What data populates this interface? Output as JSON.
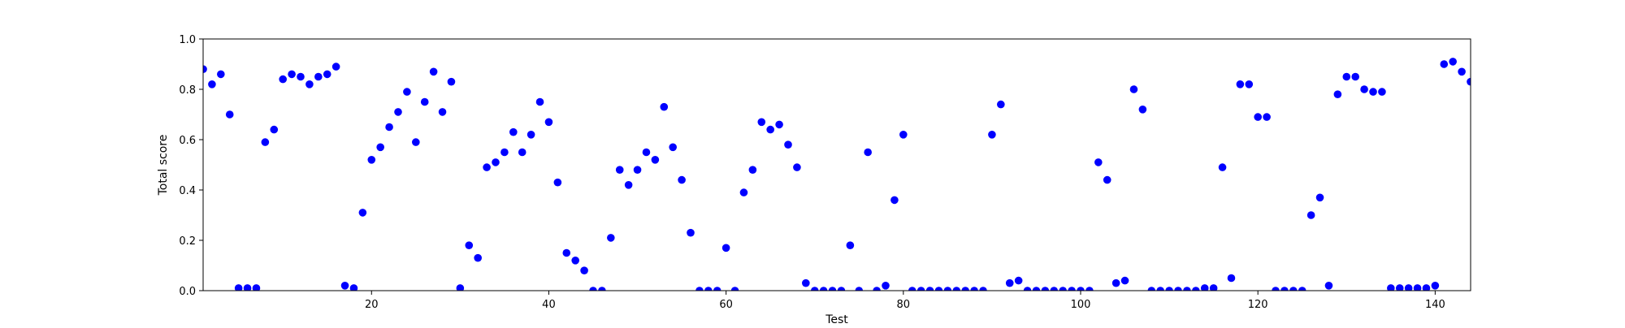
{
  "chart_data": {
    "type": "scatter",
    "title": "",
    "xlabel": "Test",
    "ylabel": "Total score",
    "xlim": [
      1,
      144
    ],
    "ylim": [
      0.0,
      1.0
    ],
    "xticks": [
      20,
      40,
      60,
      80,
      100,
      120,
      140
    ],
    "xtick_labels": [
      "20",
      "40",
      "60",
      "80",
      "100",
      "120",
      "140"
    ],
    "yticks": [
      0.0,
      0.2,
      0.4,
      0.6,
      0.8,
      1.0
    ],
    "ytick_labels": [
      "0.0",
      "0.2",
      "0.4",
      "0.6",
      "0.8",
      "1.0"
    ],
    "grid": false,
    "point_color": "#0000ff",
    "series": [
      {
        "x": [
          1,
          2,
          3,
          4,
          5,
          6,
          7,
          8,
          9,
          10,
          11,
          12,
          13,
          14,
          15,
          16,
          17,
          18,
          19,
          20,
          21,
          22,
          23,
          24,
          25,
          26,
          27,
          28,
          29,
          30,
          31,
          32,
          33,
          34,
          35,
          36,
          37,
          38,
          39,
          40,
          41,
          42,
          43,
          44,
          45,
          46,
          47,
          48,
          49,
          50,
          51,
          52,
          53,
          54,
          55,
          56,
          57,
          58,
          59,
          60,
          61,
          62,
          63,
          64,
          65,
          66,
          67,
          68,
          69,
          70,
          71,
          72,
          73,
          74,
          75,
          76,
          77,
          78,
          79,
          80,
          81,
          82,
          83,
          84,
          85,
          86,
          87,
          88,
          89,
          90,
          91,
          92,
          93,
          94,
          95,
          96,
          97,
          98,
          99,
          100,
          101,
          102,
          103,
          104,
          105,
          106,
          107,
          108,
          109,
          110,
          111,
          112,
          113,
          114,
          115,
          116,
          117,
          118,
          119,
          120,
          121,
          122,
          123,
          124,
          125,
          126,
          127,
          128,
          129,
          130,
          131,
          132,
          133,
          134,
          135,
          136,
          137,
          138,
          139,
          140,
          141,
          142,
          143,
          144
        ],
        "y": [
          0.88,
          0.82,
          0.86,
          0.7,
          0.01,
          0.01,
          0.01,
          0.59,
          0.64,
          0.84,
          0.86,
          0.85,
          0.82,
          0.85,
          0.86,
          0.89,
          0.02,
          0.01,
          0.31,
          0.52,
          0.57,
          0.65,
          0.71,
          0.79,
          0.59,
          0.75,
          0.87,
          0.71,
          0.83,
          0.01,
          0.18,
          0.13,
          0.49,
          0.51,
          0.55,
          0.63,
          0.55,
          0.62,
          0.75,
          0.67,
          0.43,
          0.15,
          0.12,
          0.08,
          0.0,
          0.0,
          0.21,
          0.48,
          0.42,
          0.48,
          0.55,
          0.52,
          0.73,
          0.57,
          0.44,
          0.23,
          0.0,
          0.0,
          0.0,
          0.17,
          0.0,
          0.39,
          0.48,
          0.67,
          0.64,
          0.66,
          0.58,
          0.49,
          0.03,
          0.0,
          0.0,
          0.0,
          0.0,
          0.18,
          0.0,
          0.55,
          0.0,
          0.02,
          0.36,
          0.62,
          0.0,
          0.0,
          0.0,
          0.0,
          0.0,
          0.0,
          0.0,
          0.0,
          0.0,
          0.62,
          0.74,
          0.03,
          0.04,
          0.0,
          0.0,
          0.0,
          0.0,
          0.0,
          0.0,
          0.0,
          0.0,
          0.51,
          0.44,
          0.03,
          0.04,
          0.8,
          0.72,
          0.0,
          0.0,
          0.0,
          0.0,
          0.0,
          0.0,
          0.01,
          0.01,
          0.49,
          0.05,
          0.82,
          0.82,
          0.69,
          0.69,
          0.0,
          0.0,
          0.0,
          0.0,
          0.3,
          0.37,
          0.02,
          0.78,
          0.85,
          0.85,
          0.8,
          0.79,
          0.79,
          0.01,
          0.01,
          0.01,
          0.01,
          0.01,
          0.02,
          0.9,
          0.91,
          0.87,
          0.83
        ]
      }
    ]
  }
}
